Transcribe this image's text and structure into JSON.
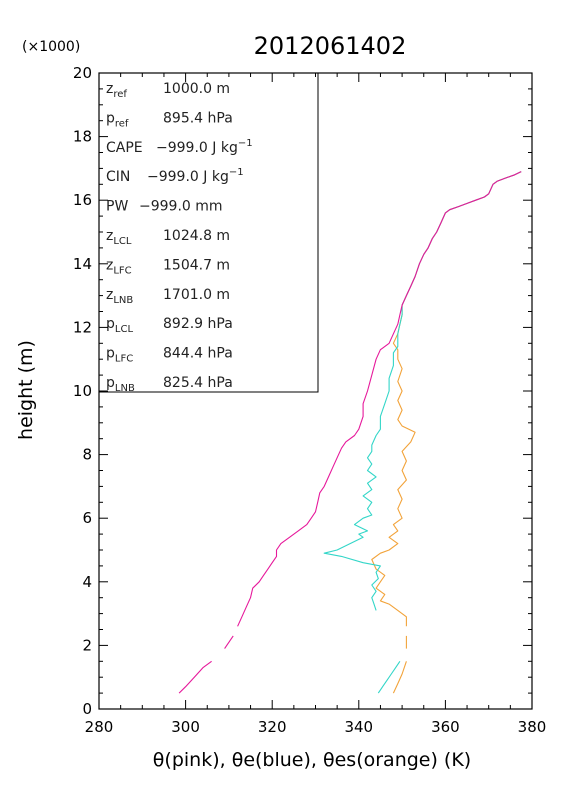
{
  "chart_data": {
    "type": "line",
    "title": "2012061402",
    "xlabel": "θ(pink), θe(blue), θes(orange)   (K)",
    "ylabel": "height (m)",
    "y_scale_note": "(×1000)",
    "xlim": [
      280,
      380
    ],
    "ylim": [
      0,
      20000
    ],
    "x_ticks": [
      280,
      300,
      320,
      340,
      360,
      380
    ],
    "y_ticks": [
      0,
      2,
      4,
      6,
      8,
      10,
      12,
      14,
      16,
      18,
      20
    ],
    "grid": false,
    "legend": "none",
    "colors": {
      "theta": "#e6199b",
      "theta_e": "#33d6c8",
      "theta_es": "#f2a33a",
      "axis": "#000000"
    },
    "series": [
      {
        "segments": [
          [
            [
              298.5,
              500
            ],
            [
              300,
              700
            ],
            [
              302,
              1000
            ],
            [
              304,
              1300
            ],
            [
              306,
              1500
            ]
          ],
          [
            [
              309,
              1900
            ],
            [
              311,
              2300
            ]
          ],
          [
            [
              312,
              2600
            ],
            [
              313,
              2900
            ],
            [
              314,
              3200
            ],
            [
              315,
              3500
            ],
            [
              315.5,
              3800
            ],
            [
              317,
              4000
            ],
            [
              318,
              4200
            ],
            [
              319,
              4400
            ],
            [
              320,
              4600
            ],
            [
              321,
              4800
            ],
            [
              321,
              5000
            ],
            [
              322,
              5200
            ],
            [
              324,
              5400
            ],
            [
              326,
              5600
            ],
            [
              328,
              5800
            ],
            [
              329,
              6000
            ],
            [
              330,
              6200
            ],
            [
              330.5,
              6500
            ],
            [
              331,
              6800
            ],
            [
              332,
              7000
            ],
            [
              333,
              7300
            ],
            [
              334,
              7600
            ],
            [
              335,
              7900
            ],
            [
              336,
              8200
            ],
            [
              337,
              8400
            ],
            [
              339,
              8600
            ],
            [
              340,
              8800
            ],
            [
              341,
              9200
            ],
            [
              341,
              9600
            ],
            [
              342,
              10000
            ],
            [
              343,
              10500
            ],
            [
              344,
              11000
            ],
            [
              345,
              11300
            ],
            [
              347,
              11500
            ],
            [
              348,
              11800
            ],
            [
              349,
              12100
            ],
            [
              349.5,
              12400
            ],
            [
              350,
              12700
            ],
            [
              351,
              13000
            ],
            [
              352,
              13300
            ],
            [
              353,
              13600
            ],
            [
              354,
              14000
            ],
            [
              355,
              14300
            ],
            [
              356,
              14500
            ],
            [
              357,
              14800
            ],
            [
              358,
              15000
            ],
            [
              359,
              15300
            ],
            [
              360,
              15600
            ],
            [
              361,
              15700
            ],
            [
              363,
              15800
            ],
            [
              365,
              15900
            ],
            [
              367,
              16000
            ],
            [
              369,
              16100
            ],
            [
              370,
              16200
            ],
            [
              371,
              16500
            ],
            [
              372,
              16600
            ],
            [
              374,
              16700
            ],
            [
              376,
              16800
            ],
            [
              377.5,
              16900
            ]
          ]
        ]
      },
      {
        "segments": [
          [
            [
              344.5,
              500
            ],
            [
              345.5,
              700
            ],
            [
              346.5,
              900
            ],
            [
              347.5,
              1100
            ],
            [
              348.5,
              1300
            ],
            [
              349.5,
              1500
            ]
          ],
          [
            [
              344,
              3100
            ],
            [
              343.5,
              3300
            ],
            [
              343,
              3500
            ],
            [
              344,
              3700
            ],
            [
              343,
              3900
            ],
            [
              344.5,
              4100
            ],
            [
              344,
              4300
            ],
            [
              345,
              4500
            ],
            [
              341,
              4600
            ],
            [
              336,
              4800
            ],
            [
              332,
              4900
            ],
            [
              335,
              5000
            ],
            [
              338,
              5200
            ],
            [
              341,
              5400
            ],
            [
              340,
              5500
            ],
            [
              342,
              5600
            ],
            [
              339,
              5800
            ],
            [
              341,
              6000
            ],
            [
              343,
              6100
            ],
            [
              342,
              6300
            ],
            [
              343,
              6500
            ],
            [
              341,
              6700
            ],
            [
              343,
              6900
            ],
            [
              342,
              7100
            ],
            [
              344,
              7300
            ],
            [
              342,
              7500
            ],
            [
              343,
              7700
            ],
            [
              342,
              7900
            ],
            [
              343,
              8100
            ],
            [
              343,
              8300
            ],
            [
              344,
              8600
            ],
            [
              345,
              8800
            ],
            [
              345,
              9200
            ],
            [
              346,
              9600
            ],
            [
              347,
              10000
            ],
            [
              347,
              10400
            ],
            [
              348,
              10800
            ],
            [
              348,
              11200
            ],
            [
              349,
              11400
            ],
            [
              349,
              11800
            ],
            [
              349.5,
              12100
            ],
            [
              350,
              12400
            ],
            [
              350,
              12700
            ],
            [
              351,
              13000
            ],
            [
              352,
              13300
            ],
            [
              353,
              13600
            ],
            [
              354,
              14000
            ],
            [
              355,
              14300
            ],
            [
              356,
              14500
            ],
            [
              357,
              14800
            ],
            [
              358,
              15000
            ],
            [
              359,
              15300
            ],
            [
              360,
              15600
            ],
            [
              361,
              15700
            ],
            [
              363,
              15800
            ],
            [
              365,
              15900
            ],
            [
              367,
              16000
            ],
            [
              369,
              16100
            ],
            [
              370,
              16200
            ],
            [
              371,
              16500
            ],
            [
              372,
              16600
            ],
            [
              374,
              16700
            ],
            [
              376,
              16800
            ],
            [
              377.5,
              16900
            ]
          ]
        ]
      },
      {
        "segments": [
          [
            [
              348,
              500
            ],
            [
              349,
              800
            ],
            [
              350,
              1100
            ],
            [
              351,
              1500
            ]
          ],
          [
            [
              351,
              1900
            ],
            [
              351,
              2300
            ]
          ],
          [
            [
              351,
              2600
            ],
            [
              351,
              2900
            ],
            [
              349,
              3100
            ],
            [
              347,
              3300
            ],
            [
              345,
              3400
            ],
            [
              346,
              3600
            ],
            [
              344,
              3800
            ],
            [
              345,
              4000
            ],
            [
              346,
              4200
            ],
            [
              344,
              4400
            ],
            [
              343,
              4700
            ],
            [
              345,
              4900
            ],
            [
              347,
              5000
            ],
            [
              349,
              5200
            ],
            [
              347,
              5400
            ],
            [
              349,
              5600
            ],
            [
              348,
              5800
            ],
            [
              350,
              6000
            ],
            [
              349,
              6300
            ],
            [
              350,
              6600
            ],
            [
              349,
              6900
            ],
            [
              351,
              7200
            ],
            [
              350,
              7500
            ],
            [
              351,
              7800
            ],
            [
              350,
              8100
            ],
            [
              352,
              8400
            ],
            [
              353,
              8700
            ],
            [
              350,
              8900
            ],
            [
              349,
              9100
            ],
            [
              350,
              9400
            ],
            [
              349,
              9700
            ],
            [
              350,
              10000
            ],
            [
              349,
              10300
            ],
            [
              350,
              10700
            ],
            [
              349,
              11000
            ],
            [
              349,
              11300
            ],
            [
              348,
              11500
            ],
            [
              349,
              11800
            ],
            [
              349.5,
              12100
            ],
            [
              350,
              12400
            ],
            [
              350,
              12700
            ],
            [
              351,
              13000
            ],
            [
              352,
              13300
            ],
            [
              353,
              13600
            ],
            [
              354,
              14000
            ],
            [
              355,
              14300
            ],
            [
              356,
              14500
            ],
            [
              357,
              14800
            ],
            [
              358,
              15000
            ],
            [
              359,
              15300
            ],
            [
              360,
              15600
            ],
            [
              361,
              15700
            ],
            [
              363,
              15800
            ],
            [
              365,
              15900
            ],
            [
              367,
              16000
            ],
            [
              369,
              16100
            ],
            [
              370,
              16200
            ],
            [
              371,
              16500
            ],
            [
              372,
              16600
            ],
            [
              374,
              16700
            ],
            [
              376,
              16800
            ],
            [
              377.5,
              16900
            ]
          ]
        ]
      }
    ],
    "annotations": [
      {
        "name": "z",
        "sub": "ref",
        "value": "1000.0 m"
      },
      {
        "name": "p",
        "sub": "ref",
        "value": "895.4 hPa"
      },
      {
        "name": "CAPE",
        "sub": "",
        "value": "−999.0 J kg",
        "sup": "−1"
      },
      {
        "name": "CIN",
        "sub": "",
        "value": "−999.0 J kg",
        "sup": "−1"
      },
      {
        "name": "PW",
        "sub": "",
        "value": "−999.0 mm"
      },
      {
        "name": "z",
        "sub": "LCL",
        "value": "1024.8 m"
      },
      {
        "name": "z",
        "sub": "LFC",
        "value": "1504.7 m"
      },
      {
        "name": "z",
        "sub": "LNB",
        "value": "1701.0 m"
      },
      {
        "name": "p",
        "sub": "LCL",
        "value": "892.9 hPa"
      },
      {
        "name": "p",
        "sub": "LFC",
        "value": "844.4 hPa"
      },
      {
        "name": "p",
        "sub": "LNB",
        "value": "825.4 hPa"
      }
    ]
  }
}
